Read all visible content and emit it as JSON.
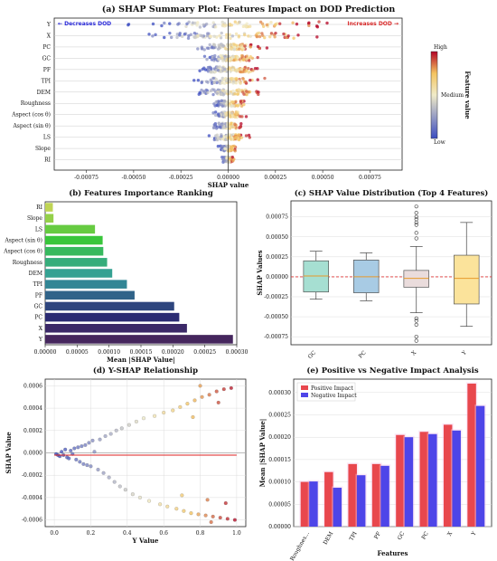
{
  "chart_data": [
    {
      "id": "a",
      "type": "scatter",
      "title": "(a) SHAP Summary Plot: Features Impact on DOD Prediction",
      "xlabel": "SHAP value",
      "xlim": [
        -0.00092,
        0.00092
      ],
      "xticks": [
        "-0.00075",
        "-0.00050",
        "-0.00025",
        "0.00000",
        "0.00025",
        "0.00050",
        "0.00075"
      ],
      "xtick_values": [
        -0.00075,
        -0.0005,
        -0.00025,
        0,
        0.00025,
        0.0005,
        0.00075
      ],
      "features": [
        "Y",
        "X",
        "PC",
        "GC",
        "PF",
        "TPI",
        "DEM",
        "Roughness",
        "Aspect (cos θ)",
        "Aspect (sin θ)",
        "LS",
        "Slope",
        "RI"
      ],
      "spread": [
        0.00085,
        0.00088,
        0.00032,
        0.00028,
        0.00032,
        0.0003,
        0.00035,
        0.00018,
        0.00016,
        0.00016,
        0.00018,
        8e-05,
        6e-05
      ],
      "annotations": {
        "left": "← Decreases DOD",
        "right": "Increases DOD →"
      },
      "colorbar": {
        "label": "Feature value",
        "high": "High",
        "medium": "Medium",
        "low": "Low"
      }
    },
    {
      "id": "b",
      "type": "bar",
      "orientation": "horizontal",
      "title": "(b) Features Importance Ranking",
      "xlabel": "Mean |SHAP Value|",
      "categories": [
        "RI",
        "Slope",
        "LS",
        "Aspect (sin θ)",
        "Aspect (cos θ)",
        "Roughness",
        "DEM",
        "TPI",
        "PF",
        "GC",
        "PC",
        "X",
        "Y"
      ],
      "values": [
        1.2e-05,
        1.3e-05,
        7.8e-05,
        9e-05,
        9.1e-05,
        9.7e-05,
        0.000105,
        0.000128,
        0.00014,
        0.000202,
        0.00021,
        0.000222,
        0.000294
      ],
      "xlim": [
        0,
        0.0003
      ],
      "xticks": [
        "0.00000",
        "0.00005",
        "0.00010",
        "0.00015",
        "0.00020",
        "0.00025",
        "0.00030"
      ],
      "xtick_values": [
        0,
        5e-05,
        0.0001,
        0.00015,
        0.0002,
        0.00025,
        0.0003
      ]
    },
    {
      "id": "c",
      "type": "box",
      "title": "(c) SHAP Value Distribution (Top 4 Features)",
      "ylabel": "SHAP Values",
      "categories": [
        "GC",
        "PC",
        "X",
        "Y"
      ],
      "boxes": [
        {
          "whislo": -0.00028,
          "q1": -0.00019,
          "med": 1e-05,
          "q3": 0.0002,
          "whishi": 0.00032,
          "fliers": []
        },
        {
          "whislo": -0.0003,
          "q1": -0.0002,
          "med": 0.0,
          "q3": 0.00021,
          "whishi": 0.0003,
          "fliers": []
        },
        {
          "whislo": -0.00045,
          "q1": -0.00013,
          "med": -2e-05,
          "q3": 8e-05,
          "whishi": 0.00038,
          "fliers": [
            0.00088,
            0.0008,
            0.00075,
            0.00072,
            0.00068,
            0.00065,
            0.00055,
            0.00048,
            -0.00052,
            -0.00055,
            -0.0006,
            -0.00075,
            -0.0008
          ]
        },
        {
          "whislo": -0.00062,
          "q1": -0.00034,
          "med": -2e-05,
          "q3": 0.00027,
          "whishi": 0.00068,
          "fliers": []
        }
      ],
      "ylim": [
        -0.00085,
        0.00095
      ],
      "yticks": [
        "-0.00075",
        "-0.00050",
        "-0.00025",
        "0.00000",
        "0.00025",
        "0.00050",
        "0.00075"
      ],
      "ytick_values": [
        -0.00075,
        -0.0005,
        -0.00025,
        0,
        0.00025,
        0.0005,
        0.00075
      ]
    },
    {
      "id": "d",
      "type": "scatter",
      "title": "(d) Y-SHAP Relationship",
      "xlabel": "Y Value",
      "ylabel": "SHAP Value",
      "xlim": [
        -0.05,
        1.05
      ],
      "ylim": [
        -0.00066,
        0.00066
      ],
      "xticks": [
        "0.0",
        "0.2",
        "0.4",
        "0.6",
        "0.8",
        "1.0"
      ],
      "xtick_values": [
        0,
        0.2,
        0.4,
        0.6,
        0.8,
        1.0
      ],
      "yticks": [
        "-0.0006",
        "-0.0004",
        "-0.0002",
        "0.0000",
        "0.0002",
        "0.0004",
        "0.0006"
      ],
      "ytick_values": [
        -0.0006,
        -0.0004,
        -0.0002,
        0,
        0.0002,
        0.0004,
        0.0006
      ],
      "points": [
        [
          0.01,
          -1e-05
        ],
        [
          0.02,
          -2e-05
        ],
        [
          0.03,
          -3e-05
        ],
        [
          0.04,
          1e-05
        ],
        [
          0.05,
          -2e-05
        ],
        [
          0.06,
          3e-05
        ],
        [
          0.07,
          -4e-05
        ],
        [
          0.08,
          -5e-05
        ],
        [
          0.09,
          2e-05
        ],
        [
          0.1,
          -1e-05
        ],
        [
          0.11,
          4e-05
        ],
        [
          0.12,
          -6e-05
        ],
        [
          0.13,
          5e-05
        ],
        [
          0.14,
          -8e-05
        ],
        [
          0.15,
          6e-05
        ],
        [
          0.16,
          -0.0001
        ],
        [
          0.17,
          7e-05
        ],
        [
          0.18,
          -0.00011
        ],
        [
          0.19,
          9e-05
        ],
        [
          0.2,
          -0.00012
        ],
        [
          0.21,
          0.00011
        ],
        [
          0.22,
          1e-05
        ],
        [
          0.24,
          -0.00015
        ],
        [
          0.25,
          0.00012
        ],
        [
          0.27,
          -0.00018
        ],
        [
          0.28,
          0.00015
        ],
        [
          0.3,
          -0.00022
        ],
        [
          0.31,
          0.00017
        ],
        [
          0.33,
          -0.00026
        ],
        [
          0.34,
          0.0002
        ],
        [
          0.36,
          -0.0003
        ],
        [
          0.37,
          0.00022
        ],
        [
          0.39,
          -0.00033
        ],
        [
          0.41,
          0.00025
        ],
        [
          0.43,
          -0.00037
        ],
        [
          0.45,
          0.00028
        ],
        [
          0.47,
          -0.0004
        ],
        [
          0.49,
          0.00031
        ],
        [
          0.52,
          -0.00043
        ],
        [
          0.55,
          0.00033
        ],
        [
          0.58,
          -0.00046
        ],
        [
          0.6,
          0.00036
        ],
        [
          0.62,
          -0.00048
        ],
        [
          0.65,
          0.00038
        ],
        [
          0.67,
          -0.0005
        ],
        [
          0.69,
          0.00041
        ],
        [
          0.71,
          -0.00052
        ],
        [
          0.73,
          0.00044
        ],
        [
          0.75,
          -0.00054
        ],
        [
          0.77,
          0.00047
        ],
        [
          0.79,
          -0.00055
        ],
        [
          0.81,
          0.0005
        ],
        [
          0.83,
          -0.00056
        ],
        [
          0.85,
          0.00052
        ],
        [
          0.87,
          -0.00057
        ],
        [
          0.89,
          0.00055
        ],
        [
          0.91,
          -0.00058
        ],
        [
          0.93,
          0.00057
        ],
        [
          0.95,
          -0.00059
        ],
        [
          0.97,
          0.00058
        ],
        [
          0.99,
          -0.0006
        ],
        [
          0.76,
          0.00032
        ],
        [
          0.84,
          -0.00042
        ],
        [
          0.9,
          0.00045
        ],
        [
          0.94,
          -0.00045
        ],
        [
          0.8,
          0.0006
        ],
        [
          0.86,
          -0.00062
        ],
        [
          0.7,
          -0.00038
        ]
      ]
    },
    {
      "id": "e",
      "type": "bar",
      "title": "(e) Positive vs Negative Impact Analysis",
      "xlabel": "Features",
      "ylabel": "Mean |SHAP Value|",
      "categories": [
        "Roughnes...",
        "DEM",
        "TPI",
        "PF",
        "GC",
        "PC",
        "X",
        "Y"
      ],
      "series": [
        {
          "name": "Positive Impact",
          "values": [
            0.0001,
            0.000122,
            0.00014,
            0.00014,
            0.000205,
            0.000212,
            0.000228,
            0.00032
          ]
        },
        {
          "name": "Negative Impact",
          "values": [
            0.000101,
            8.7e-05,
            0.000115,
            0.000136,
            0.0002,
            0.000207,
            0.000215,
            0.00027
          ]
        }
      ],
      "ylim": [
        0,
        0.00033
      ],
      "yticks": [
        "0.00000",
        "0.00005",
        "0.00010",
        "0.00015",
        "0.00020",
        "0.00025",
        "0.00030"
      ],
      "ytick_values": [
        0,
        5e-05,
        0.0001,
        0.00015,
        0.0002,
        0.00025,
        0.0003
      ],
      "colors": {
        "positive": "#e8474d",
        "negative": "#4e45e8"
      }
    }
  ]
}
